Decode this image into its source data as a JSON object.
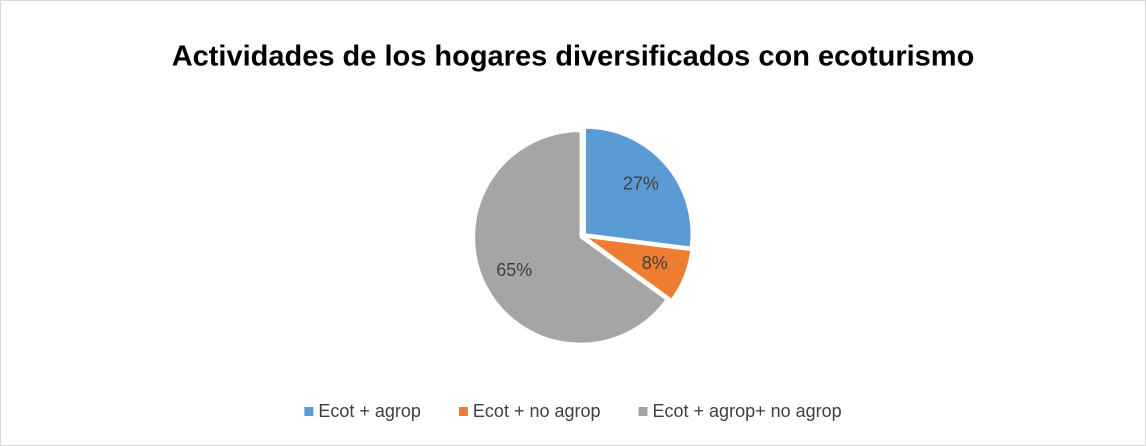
{
  "chart_data": {
    "type": "pie",
    "title": "Actividades de los hogares diversificados con ecoturismo",
    "categories": [
      "Ecot + agrop",
      "Ecot + no agrop",
      "Ecot + agrop+ no agrop"
    ],
    "values": [
      27,
      8,
      65
    ],
    "value_labels": [
      "27%",
      "8%",
      "65%"
    ],
    "colors": [
      "#5b9bd5",
      "#ed7d31",
      "#a5a5a5"
    ],
    "legend": "bottom"
  }
}
